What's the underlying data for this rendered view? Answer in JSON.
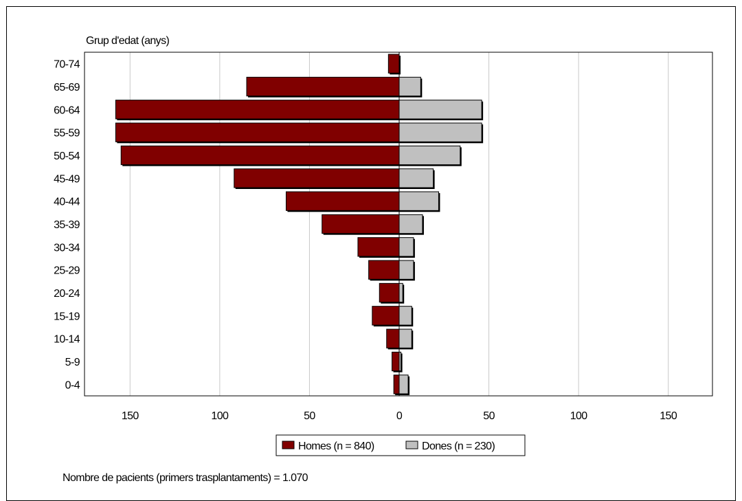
{
  "chart_data": {
    "type": "bar",
    "orientation": "horizontal",
    "layout": "population-pyramid",
    "ylabel": "Grup d'edat (anys)",
    "categories": [
      "70-74",
      "65-69",
      "60-64",
      "55-59",
      "50-54",
      "45-49",
      "40-44",
      "35-39",
      "30-34",
      "25-29",
      "20-24",
      "15-19",
      "10-14",
      "5-9",
      "0-4"
    ],
    "series": [
      {
        "name": "Homes (n = 840)",
        "side": "left",
        "color": "#800000",
        "values": [
          6,
          85,
          158,
          158,
          155,
          92,
          63,
          43,
          23,
          17,
          11,
          15,
          7,
          4,
          3
        ]
      },
      {
        "name": "Dones (n = 230)",
        "side": "right",
        "color": "#c0c0c0",
        "values": [
          0,
          12,
          46,
          46,
          34,
          19,
          22,
          13,
          8,
          8,
          2,
          7,
          7,
          1,
          5
        ]
      }
    ],
    "xlim": [
      -175,
      175
    ],
    "xticks": [
      -150,
      -100,
      -50,
      0,
      50,
      100,
      150
    ],
    "xtick_labels": [
      "150",
      "100",
      "50",
      "0",
      "50",
      "100",
      "150"
    ],
    "grid": "vertical",
    "legend_position": "bottom-center"
  },
  "note": "Nombre de pacients (primers trasplantaments) = 1.070"
}
